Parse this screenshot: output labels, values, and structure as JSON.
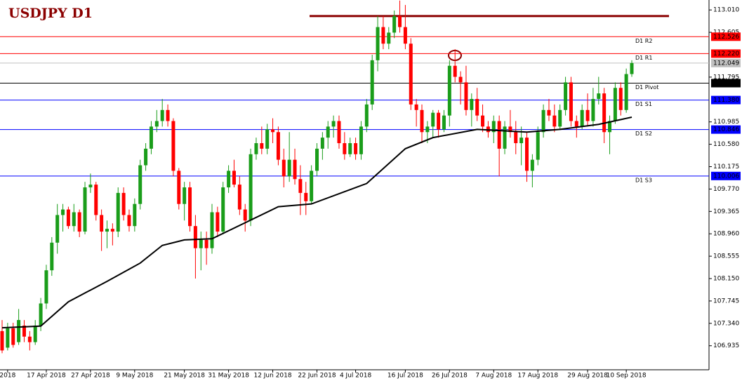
{
  "chart_data": {
    "type": "candlestick",
    "title": "USDJPY D1",
    "up_color": "#1a9d1a",
    "down_color": "#ff0000",
    "ylim": [
      106.5,
      113.19
    ],
    "yticks": [
      {
        "value": 113.01,
        "label": "113.010"
      },
      112.605,
      111.795,
      110.985,
      {
        "value": 110.58,
        "label": "110.580"
      },
      110.175,
      {
        "value": 109.77,
        "label": "109.770"
      },
      109.365,
      {
        "value": 108.96,
        "label": "108.960"
      },
      108.555,
      {
        "value": 108.15,
        "label": "108.150"
      },
      107.745,
      {
        "value": 107.34,
        "label": "107.340"
      },
      106.935
    ],
    "categories": [
      null,
      "2018",
      null,
      null,
      null,
      null,
      null,
      null,
      "17 Apr 2018",
      null,
      null,
      null,
      null,
      null,
      null,
      null,
      "27 Apr 2018",
      null,
      null,
      null,
      null,
      null,
      null,
      null,
      "9 May 2018",
      null,
      null,
      null,
      null,
      null,
      null,
      null,
      null,
      "21 May 2018",
      null,
      null,
      null,
      null,
      null,
      null,
      null,
      "31 May 2018",
      null,
      null,
      null,
      null,
      null,
      null,
      null,
      "12 Jun 2018",
      null,
      null,
      null,
      null,
      null,
      null,
      null,
      "22 Jun 2018",
      null,
      null,
      null,
      null,
      null,
      null,
      "4 Jul 2018",
      null,
      null,
      null,
      null,
      null,
      null,
      null,
      null,
      "16 Jul 2018",
      null,
      null,
      null,
      null,
      null,
      null,
      null,
      "26 Jul 2018",
      null,
      null,
      null,
      null,
      null,
      null,
      null,
      "7 Aug 2018",
      null,
      null,
      null,
      null,
      null,
      null,
      null,
      "17 Aug 2018",
      null,
      null,
      null,
      null,
      null,
      null,
      null,
      null,
      "29 Aug 2018",
      null,
      null,
      null,
      null,
      null,
      null,
      "10 Sep 2018",
      null
    ],
    "ohlc": [
      [
        107.2,
        107.4,
        106.8,
        106.85
      ],
      [
        106.9,
        107.35,
        106.85,
        107.25
      ],
      [
        107.25,
        107.35,
        106.9,
        106.95
      ],
      [
        107.0,
        107.6,
        106.95,
        107.4
      ],
      [
        107.3,
        107.4,
        107.0,
        107.1
      ],
      [
        107.1,
        107.2,
        106.85,
        107.0
      ],
      [
        107.0,
        107.4,
        106.95,
        107.3
      ],
      [
        107.3,
        107.8,
        107.2,
        107.7
      ],
      [
        107.7,
        108.4,
        107.6,
        108.3
      ],
      [
        108.3,
        108.9,
        108.2,
        108.8
      ],
      [
        108.8,
        109.5,
        108.6,
        109.3
      ],
      [
        109.3,
        109.5,
        109.0,
        109.4
      ],
      [
        109.4,
        109.45,
        109.05,
        109.1
      ],
      [
        109.1,
        109.5,
        109.0,
        109.35
      ],
      [
        109.35,
        109.4,
        108.9,
        109.0
      ],
      [
        109.0,
        109.9,
        108.95,
        109.8
      ],
      [
        109.8,
        110.05,
        109.7,
        109.85
      ],
      [
        109.85,
        109.9,
        109.2,
        109.3
      ],
      [
        109.3,
        109.4,
        108.65,
        109.0
      ],
      [
        109.0,
        109.2,
        108.7,
        109.05
      ],
      [
        109.05,
        109.15,
        108.75,
        109.0
      ],
      [
        109.0,
        109.8,
        108.9,
        109.7
      ],
      [
        109.7,
        109.8,
        109.2,
        109.3
      ],
      [
        109.3,
        109.4,
        109.0,
        109.1
      ],
      [
        109.1,
        109.6,
        109.0,
        109.5
      ],
      [
        109.5,
        110.3,
        109.4,
        110.2
      ],
      [
        110.2,
        110.6,
        110.1,
        110.5
      ],
      [
        110.5,
        111.0,
        110.4,
        110.9
      ],
      [
        110.9,
        111.2,
        110.8,
        111.0
      ],
      [
        111.0,
        111.4,
        110.9,
        111.2
      ],
      [
        111.2,
        111.3,
        110.9,
        111.0
      ],
      [
        111.0,
        111.05,
        110.0,
        110.1
      ],
      [
        110.1,
        110.15,
        109.4,
        109.5
      ],
      [
        109.5,
        109.9,
        109.2,
        109.8
      ],
      [
        109.8,
        109.9,
        109.0,
        109.1
      ],
      [
        109.1,
        109.3,
        108.15,
        108.7
      ],
      [
        108.7,
        109.0,
        108.3,
        108.85
      ],
      [
        108.85,
        109.0,
        108.4,
        108.7
      ],
      [
        108.7,
        109.5,
        108.6,
        109.35
      ],
      [
        109.35,
        109.45,
        108.9,
        109.0
      ],
      [
        109.0,
        109.9,
        108.95,
        109.8
      ],
      [
        109.8,
        110.2,
        109.7,
        110.1
      ],
      [
        110.1,
        110.3,
        109.8,
        109.85
      ],
      [
        109.85,
        110.0,
        109.3,
        109.4
      ],
      [
        109.4,
        109.5,
        109.0,
        109.2
      ],
      [
        109.2,
        110.5,
        109.1,
        110.4
      ],
      [
        110.4,
        110.7,
        110.3,
        110.6
      ],
      [
        110.6,
        110.9,
        110.4,
        110.5
      ],
      [
        110.5,
        110.95,
        110.4,
        110.85
      ],
      [
        110.85,
        111.05,
        110.6,
        110.8
      ],
      [
        110.8,
        110.9,
        110.2,
        110.3
      ],
      [
        110.3,
        110.5,
        109.8,
        110.0
      ],
      [
        110.0,
        110.8,
        109.9,
        110.3
      ],
      [
        110.3,
        110.5,
        109.85,
        109.95
      ],
      [
        109.95,
        110.2,
        109.3,
        109.7
      ],
      [
        109.7,
        109.9,
        109.3,
        109.55
      ],
      [
        109.55,
        110.2,
        109.5,
        110.1
      ],
      [
        110.1,
        110.6,
        110.0,
        110.5
      ],
      [
        110.5,
        110.8,
        110.3,
        110.7
      ],
      [
        110.7,
        111.0,
        110.5,
        110.9
      ],
      [
        110.9,
        111.1,
        110.7,
        111.0
      ],
      [
        111.0,
        111.1,
        110.5,
        110.6
      ],
      [
        110.6,
        110.8,
        110.3,
        110.4
      ],
      [
        110.4,
        110.7,
        110.35,
        110.6
      ],
      [
        110.6,
        110.7,
        110.3,
        110.4
      ],
      [
        110.4,
        111.0,
        110.3,
        110.9
      ],
      [
        110.9,
        111.4,
        110.8,
        111.3
      ],
      [
        111.3,
        112.2,
        111.2,
        112.1
      ],
      [
        112.1,
        112.9,
        111.9,
        112.7
      ],
      [
        112.7,
        112.9,
        112.3,
        112.4
      ],
      [
        112.4,
        112.7,
        112.3,
        112.6
      ],
      [
        112.6,
        113.0,
        112.5,
        112.9
      ],
      [
        112.9,
        113.18,
        112.6,
        112.7
      ],
      [
        112.7,
        113.1,
        112.3,
        112.4
      ],
      [
        112.4,
        112.5,
        111.2,
        111.3
      ],
      [
        111.3,
        111.4,
        110.9,
        111.2
      ],
      [
        111.2,
        111.3,
        110.6,
        110.8
      ],
      [
        110.8,
        111.0,
        110.6,
        110.9
      ],
      [
        110.9,
        111.2,
        110.7,
        111.15
      ],
      [
        111.15,
        111.2,
        110.7,
        110.85
      ],
      [
        110.85,
        111.2,
        110.8,
        111.1
      ],
      [
        111.1,
        112.1,
        110.9,
        112.0
      ],
      [
        112.0,
        112.3,
        111.7,
        111.8
      ],
      [
        111.8,
        111.9,
        111.3,
        111.7
      ],
      [
        111.7,
        112.0,
        111.1,
        111.2
      ],
      [
        111.2,
        111.5,
        110.9,
        111.4
      ],
      [
        111.4,
        111.6,
        111.0,
        111.1
      ],
      [
        111.1,
        111.3,
        110.8,
        110.9
      ],
      [
        110.9,
        111.0,
        110.7,
        110.8
      ],
      [
        110.8,
        111.1,
        110.6,
        111.0
      ],
      [
        111.0,
        111.1,
        110.0,
        110.5
      ],
      [
        110.5,
        111.0,
        110.4,
        110.9
      ],
      [
        110.9,
        111.2,
        110.7,
        110.8
      ],
      [
        110.8,
        111.0,
        110.4,
        110.6
      ],
      [
        110.6,
        110.9,
        110.2,
        110.7
      ],
      [
        110.7,
        110.8,
        109.9,
        110.1
      ],
      [
        110.1,
        110.4,
        109.8,
        110.3
      ],
      [
        110.3,
        110.9,
        110.2,
        110.8
      ],
      [
        110.8,
        111.3,
        110.7,
        111.2
      ],
      [
        111.2,
        111.4,
        111.0,
        111.1
      ],
      [
        111.1,
        111.3,
        110.8,
        110.9
      ],
      [
        110.9,
        111.3,
        110.85,
        111.2
      ],
      [
        111.2,
        111.8,
        111.1,
        111.7
      ],
      [
        111.7,
        111.8,
        110.9,
        111.0
      ],
      [
        111.0,
        111.1,
        110.7,
        110.9
      ],
      [
        110.9,
        111.3,
        110.85,
        111.2
      ],
      [
        111.2,
        111.5,
        110.9,
        111.0
      ],
      [
        111.0,
        111.6,
        110.9,
        111.4
      ],
      [
        111.4,
        111.8,
        111.3,
        111.5
      ],
      [
        111.5,
        111.6,
        110.6,
        110.8
      ],
      [
        110.8,
        111.1,
        110.4,
        111.0
      ],
      [
        111.0,
        111.7,
        110.95,
        111.6
      ],
      [
        111.6,
        111.7,
        111.1,
        111.2
      ],
      [
        111.2,
        111.95,
        111.15,
        111.85
      ],
      [
        111.85,
        112.1,
        111.8,
        112.05
      ]
    ],
    "ma": {
      "color": "#000000",
      "x": [
        0,
        7,
        12,
        19,
        25,
        29,
        33,
        38,
        50,
        56,
        66,
        73,
        78,
        86,
        95,
        101,
        108,
        114
      ],
      "values": [
        107.26,
        107.29,
        107.73,
        108.1,
        108.43,
        108.75,
        108.85,
        108.87,
        109.45,
        109.5,
        109.87,
        110.5,
        110.7,
        110.85,
        110.8,
        110.85,
        110.94,
        111.07
      ]
    },
    "hline": {
      "value": 112.9,
      "color": "#8b0000"
    },
    "current": {
      "value": 112.049,
      "label": "112.049",
      "color": "#c0c0c0"
    },
    "levels": [
      {
        "name": "D1 R2",
        "value": 112.526,
        "color": "#ff0000"
      },
      {
        "name": "D1 R1",
        "value": 112.22,
        "label": "112.220",
        "color": "#ff0000"
      },
      {
        "name": "D1 Pivot",
        "value": 111.686,
        "color": "#000000"
      },
      {
        "name": "D1 S1",
        "value": 111.38,
        "label": "111.380",
        "color": "#0000ff"
      },
      {
        "name": "D1 S2",
        "value": 110.846,
        "color": "#0000ff"
      },
      {
        "name": "D1 S3",
        "value": 110.006,
        "color": "#0000ff"
      }
    ]
  }
}
